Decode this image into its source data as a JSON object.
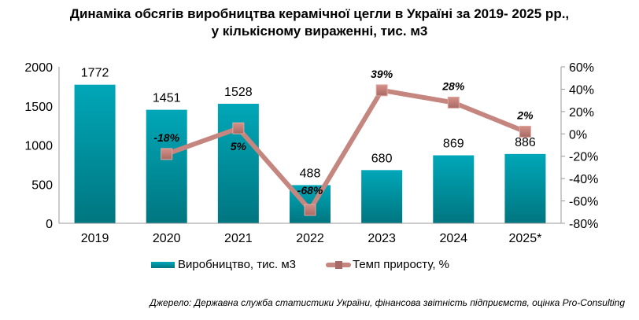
{
  "chart_data": {
    "type": "bar+line",
    "title_line1": "Динаміка обсягів виробництва керамічної цегли в Україні за 2019- 2025 рр.,",
    "title_line2": "у кількісному вираженні, тис. м3",
    "categories": [
      "2019",
      "2020",
      "2021",
      "2022",
      "2023",
      "2024",
      "2025*"
    ],
    "series": [
      {
        "name": "Виробництво, тис. м3",
        "type": "bar",
        "axis": "left",
        "values": [
          1772,
          1451,
          1528,
          488,
          680,
          869,
          886
        ],
        "labels": [
          "1772",
          "1451",
          "1528",
          "488",
          "680",
          "869",
          "886"
        ],
        "color": "#0a9aa8"
      },
      {
        "name": "Темп приросту, %",
        "type": "line",
        "axis": "right",
        "values": [
          null,
          -18,
          5,
          -68,
          39,
          28,
          2
        ],
        "labels": [
          "",
          "-18%",
          "5%",
          "-68%",
          "39%",
          "28%",
          "2%"
        ],
        "color": "#c4867e"
      }
    ],
    "left_axis": {
      "ylim": [
        0,
        2000
      ],
      "ticks": [
        "0",
        "500",
        "1000",
        "1500",
        "2000"
      ]
    },
    "right_axis": {
      "ylim": [
        -80,
        60
      ],
      "ticks": [
        "-80%",
        "-60%",
        "-40%",
        "-20%",
        "0%",
        "20%",
        "40%",
        "60%"
      ]
    },
    "legend_position": "bottom",
    "source": "Джерело: Державна служба статистики України, фінансова звітність підприємств,  оцінка Pro-Consulting"
  }
}
